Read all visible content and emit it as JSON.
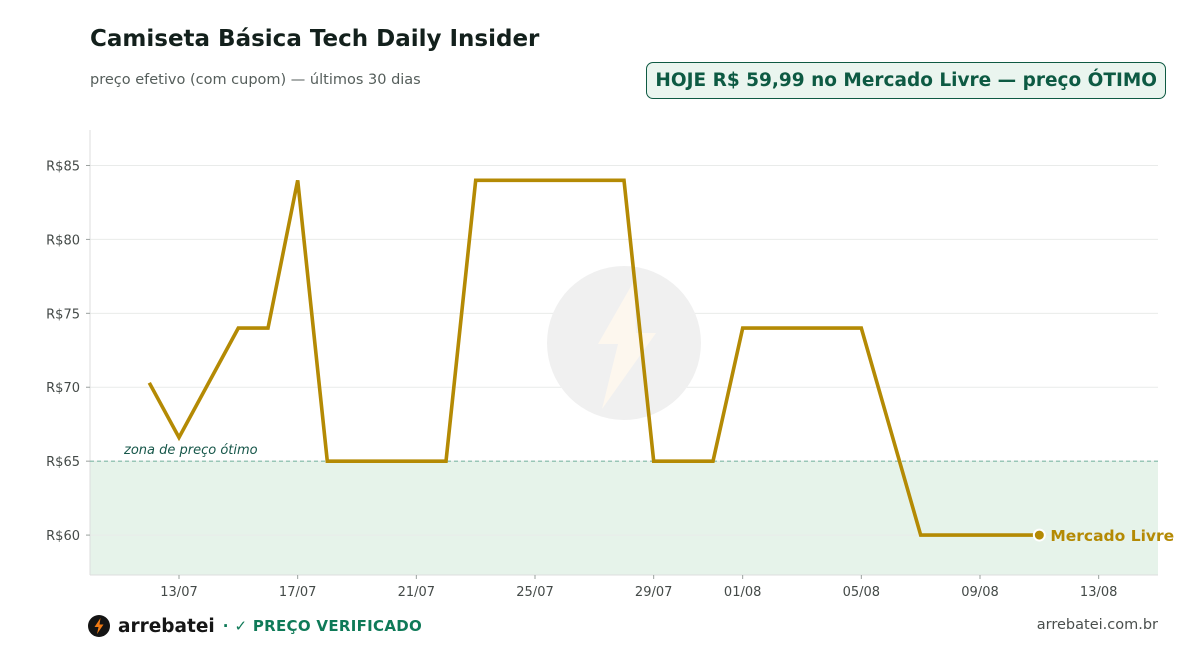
{
  "header": {
    "title": "Camiseta Básica Tech Daily Insider",
    "subtitle": "preço efetivo (com cupom) — últimos 30 dias",
    "badge": "HOJE R$ 59,99 no Mercado Livre — preço ÓTIMO"
  },
  "colors": {
    "line": "#b48a04",
    "zone_fill": "#e6f3ea",
    "zone_line": "#7fb7a5",
    "zone_text": "#17574a",
    "badge_border": "#0f5a43",
    "verified": "#0f7a58"
  },
  "chart_data": {
    "type": "line",
    "title": "Camiseta Básica Tech Daily Insider",
    "subtitle": "preço efetivo (com cupom) — últimos 30 dias",
    "xlabel": "",
    "ylabel": "",
    "x_axis_type": "date",
    "xlim": [
      "2025-07-10",
      "2025-08-15"
    ],
    "ylim": [
      57.3,
      87.4
    ],
    "y_ticks": [
      60,
      65,
      70,
      75,
      80,
      85
    ],
    "y_tick_labels": [
      "R$60",
      "R$65",
      "R$70",
      "R$75",
      "R$80",
      "R$85"
    ],
    "x_ticks": [
      "2025-07-13",
      "2025-07-17",
      "2025-07-21",
      "2025-07-25",
      "2025-07-29",
      "2025-08-01",
      "2025-08-05",
      "2025-08-09",
      "2025-08-13"
    ],
    "x_tick_labels": [
      "13/07",
      "17/07",
      "21/07",
      "25/07",
      "29/07",
      "01/08",
      "05/08",
      "09/08",
      "13/08"
    ],
    "grid": "horizontal",
    "optimal_zone": {
      "max": 65,
      "label": "zona de preço ótimo"
    },
    "series": [
      {
        "name": "Mercado Livre",
        "x": [
          "2025-07-12",
          "2025-07-13",
          "2025-07-15",
          "2025-07-16",
          "2025-07-17",
          "2025-07-18",
          "2025-07-22",
          "2025-07-23",
          "2025-07-28",
          "2025-07-29",
          "2025-07-31",
          "2025-08-01",
          "2025-08-05",
          "2025-08-07",
          "2025-08-11"
        ],
        "y": [
          70.3,
          66.6,
          74.0,
          74.0,
          84.0,
          65.0,
          65.0,
          84.0,
          84.0,
          65.0,
          65.0,
          74.0,
          74.0,
          60.0,
          60.0
        ]
      }
    ]
  },
  "footer": {
    "brand": "arrebatei",
    "separator": "·",
    "verified": "✓ PREÇO VERIFICADO",
    "site": "arrebatei.com.br"
  }
}
